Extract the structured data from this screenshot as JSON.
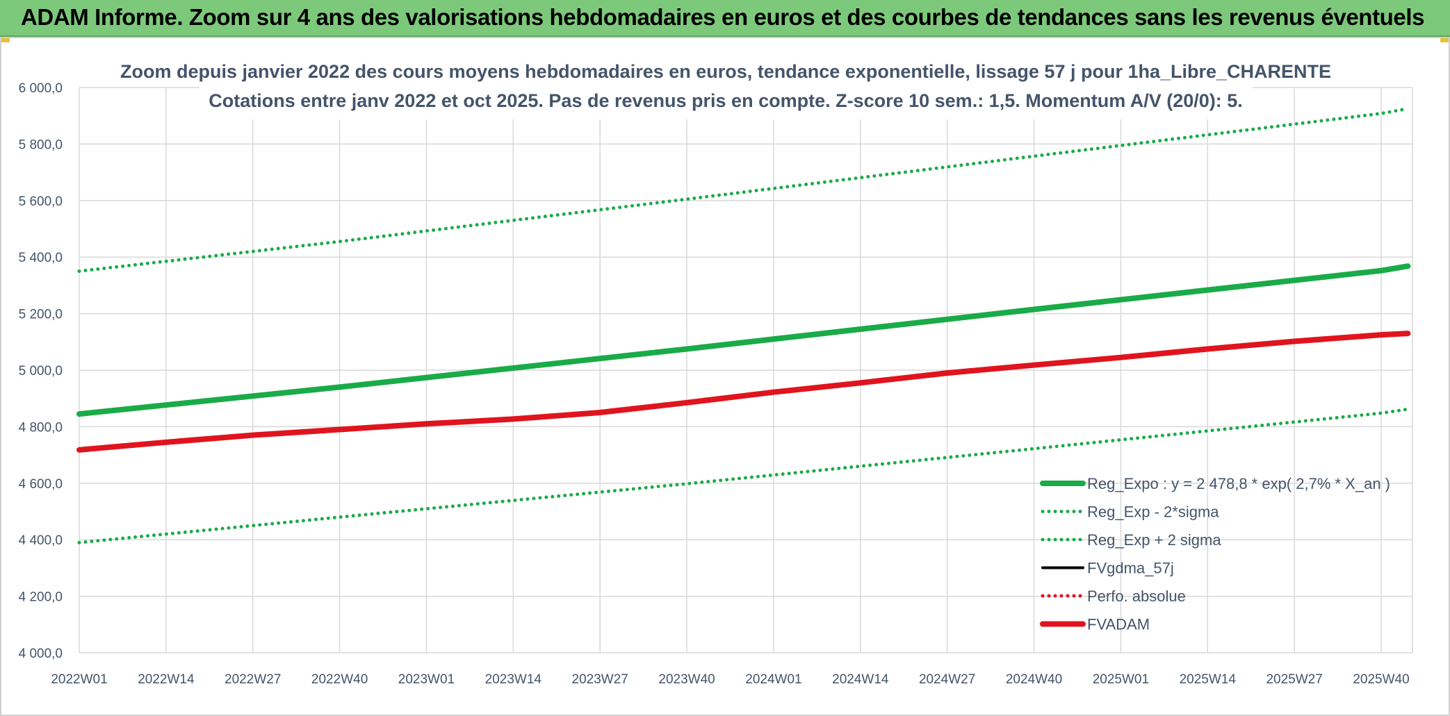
{
  "banner": {
    "title": "ADAM Informe. Zoom sur 4 ans des valorisations hebdomadaires en euros et des courbes de tendances sans les revenus éventuels"
  },
  "chart_data": {
    "type": "line",
    "title": "Zoom depuis janvier 2022 des cours moyens hebdomadaires en euros, tendance exponentielle, lissage 57 j pour 1ha_Libre_CHARENTE",
    "subtitle": "Cotations entre janv 2022 et oct 2025. Pas de revenus pris en compte. Z-score 10 sem.: 1,5. Momentum A/V (20/0): 5.",
    "ylim": [
      4000,
      6000
    ],
    "y_ticks": [
      "6 000,0",
      "5 800,0",
      "5 600,0",
      "5 400,0",
      "5 200,0",
      "5 000,0",
      "4 800,0",
      "4 600,0",
      "4 400,0",
      "4 200,0",
      "4 000,0"
    ],
    "x_ticks": [
      "2022W01",
      "2022W14",
      "2022W27",
      "2022W40",
      "2023W01",
      "2023W14",
      "2023W27",
      "2023W40",
      "2024W01",
      "2024W14",
      "2024W27",
      "2024W40",
      "2025W01",
      "2025W14",
      "2025W27",
      "2025W40"
    ],
    "grid": true,
    "legend_position": "bottom-right",
    "series": [
      {
        "name": "Reg_Expo : y = 2 478,8 * exp( 2,7% *  X_an )",
        "style": "solid-thick",
        "color": "#1aab48",
        "x": [
          "2022W01",
          "2022W40",
          "2023W40",
          "2024W40",
          "2025W40",
          "2025W44"
        ],
        "y": [
          4845,
          4940,
          5075,
          5215,
          5352,
          5368
        ]
      },
      {
        "name": "Reg_Exp - 2*sigma",
        "style": "dotted",
        "color": "#1aab48",
        "x": [
          "2022W01",
          "2022W40",
          "2023W40",
          "2024W40",
          "2025W40",
          "2025W44"
        ],
        "y": [
          4390,
          4480,
          4598,
          4722,
          4848,
          4862
        ]
      },
      {
        "name": "Reg_Exp + 2 sigma",
        "style": "dotted",
        "color": "#1aab48",
        "x": [
          "2022W01",
          "2022W40",
          "2023W40",
          "2024W40",
          "2025W40",
          "2025W44"
        ],
        "y": [
          5350,
          5455,
          5605,
          5757,
          5908,
          5925
        ]
      },
      {
        "name": "FVgdma_57j",
        "style": "solid",
        "color": "#000000",
        "x": [],
        "y": []
      },
      {
        "name": "Perfo. absolue",
        "style": "dotted",
        "color": "#e0141e",
        "x": [],
        "y": []
      },
      {
        "name": "FVADAM",
        "style": "solid-thick",
        "color": "#e0141e",
        "x": [
          "2022W01",
          "2022W14",
          "2022W27",
          "2022W40",
          "2023W01",
          "2023W14",
          "2023W27",
          "2023W40",
          "2024W01",
          "2024W14",
          "2024W27",
          "2024W40",
          "2025W01",
          "2025W14",
          "2025W27",
          "2025W40",
          "2025W44"
        ],
        "y": [
          4718,
          4745,
          4770,
          4790,
          4810,
          4827,
          4850,
          4885,
          4922,
          4955,
          4990,
          5018,
          5045,
          5075,
          5102,
          5125,
          5130
        ]
      }
    ]
  }
}
